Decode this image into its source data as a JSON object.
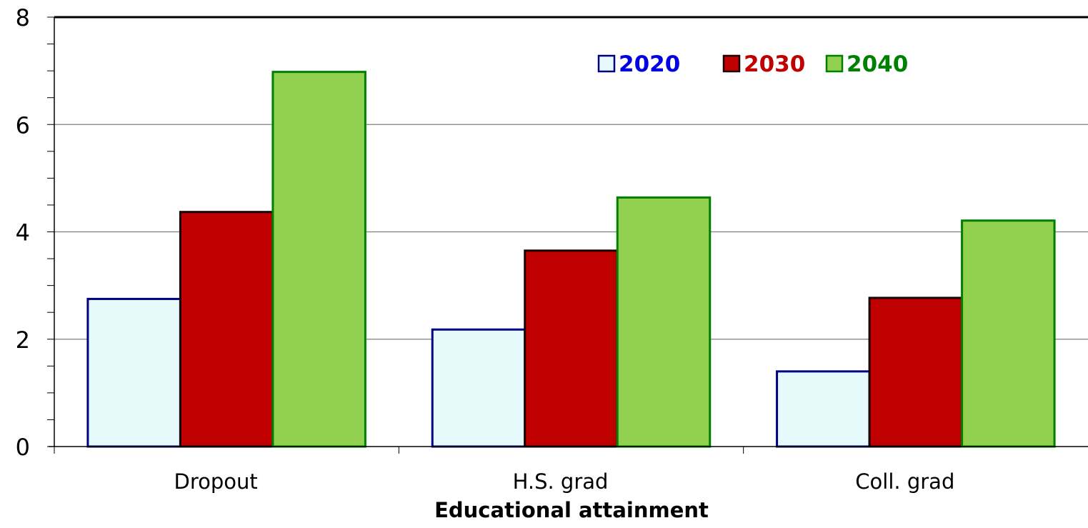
{
  "chart_data": {
    "type": "bar",
    "title": "",
    "xlabel": "Educational attainment",
    "ylabel": "",
    "categories": [
      "Dropout",
      "H.S. grad",
      "Coll. grad"
    ],
    "ylim": [
      0,
      8
    ],
    "yticks": [
      "0",
      "2",
      "4",
      "6",
      "8"
    ],
    "grid": true,
    "legend_position": "top-right",
    "series": [
      {
        "name": "2020",
        "values": [
          2.75,
          2.18,
          1.4
        ],
        "fill": "#e6fafc",
        "stroke": "#000080",
        "text_color": "#0000e0"
      },
      {
        "name": "2030",
        "values": [
          4.37,
          3.65,
          2.77
        ],
        "fill": "#c00000",
        "stroke": "#1a0000",
        "text_color": "#c00000"
      },
      {
        "name": "2040",
        "values": [
          6.98,
          4.64,
          4.21
        ],
        "fill": "#92d050",
        "stroke": "#008000",
        "text_color": "#008000"
      }
    ]
  }
}
